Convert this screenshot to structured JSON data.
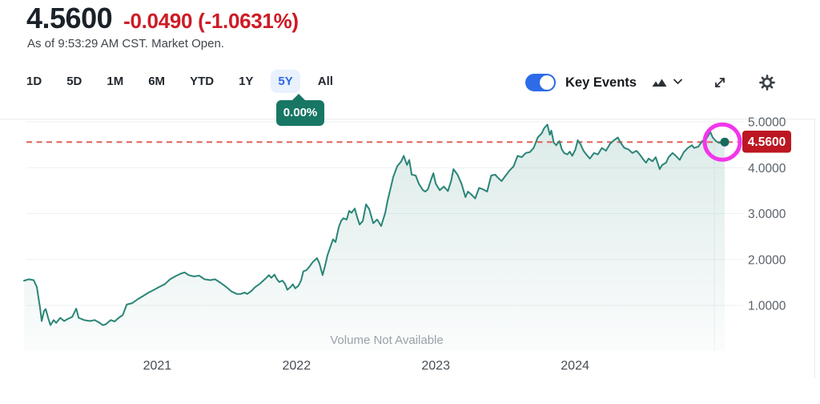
{
  "header": {
    "price": "4.5600",
    "change": "-0.0490",
    "change_pct": "(-1.0631%)",
    "as_of": "As of 9:53:29 AM CST. Market Open."
  },
  "toolbar": {
    "ranges": [
      "1D",
      "5D",
      "1M",
      "6M",
      "YTD",
      "1Y",
      "5Y",
      "All"
    ],
    "active_range": "5Y",
    "key_events_label": "Key Events",
    "key_events_on": true,
    "icons": [
      "area-chart-icon",
      "chevron-down-icon",
      "expand-icon",
      "gear-icon"
    ]
  },
  "tooltip": {
    "text": "0.00%"
  },
  "chart": {
    "price_label": "4.5600",
    "volume_note": "Volume Not Available"
  },
  "colors": {
    "line": "#2a8577",
    "dot": "#156b5c",
    "dashed": "#e06058",
    "price_label_bg": "#bc1722",
    "change_red": "#ce1b26",
    "accent_blue": "#2d6bea",
    "tooltip_green": "#177664",
    "highlight_ring": "#f136ea",
    "grid": "#eef0f2"
  },
  "chart_data": {
    "type": "area",
    "title": "",
    "xlabel": "",
    "ylabel": "",
    "x_ticks": [
      "2021",
      "2022",
      "2023",
      "2024"
    ],
    "y_ticks": [
      "5.0000",
      "4.0000",
      "3.0000",
      "2.0000",
      "1.0000"
    ],
    "ylim": [
      0,
      5.1
    ],
    "x_range": [
      2020.043,
      2025.075
    ],
    "grid": true,
    "legend": false,
    "current": 4.56,
    "points": [
      [
        2020.043,
        1.54
      ],
      [
        2020.078,
        1.57
      ],
      [
        2020.112,
        1.55
      ],
      [
        2020.135,
        1.4
      ],
      [
        2020.158,
        0.95
      ],
      [
        2020.17,
        0.66
      ],
      [
        2020.187,
        0.88
      ],
      [
        2020.199,
        0.92
      ],
      [
        2020.216,
        0.73
      ],
      [
        2020.233,
        0.57
      ],
      [
        2020.256,
        0.68
      ],
      [
        2020.274,
        0.62
      ],
      [
        2020.303,
        0.73
      ],
      [
        2020.331,
        0.66
      ],
      [
        2020.36,
        0.71
      ],
      [
        2020.389,
        0.75
      ],
      [
        2020.418,
        0.93
      ],
      [
        2020.435,
        0.73
      ],
      [
        2020.475,
        0.68
      ],
      [
        2020.516,
        0.66
      ],
      [
        2020.55,
        0.68
      ],
      [
        2020.591,
        0.61
      ],
      [
        2020.608,
        0.57
      ],
      [
        2020.631,
        0.59
      ],
      [
        2020.666,
        0.68
      ],
      [
        2020.694,
        0.65
      ],
      [
        2020.723,
        0.73
      ],
      [
        2020.752,
        0.79
      ],
      [
        2020.781,
        1.02
      ],
      [
        2020.821,
        1.05
      ],
      [
        2020.862,
        1.14
      ],
      [
        2020.896,
        1.2
      ],
      [
        2020.937,
        1.28
      ],
      [
        2020.977,
        1.34
      ],
      [
        2021.012,
        1.4
      ],
      [
        2021.052,
        1.46
      ],
      [
        2021.092,
        1.57
      ],
      [
        2021.127,
        1.63
      ],
      [
        2021.167,
        1.69
      ],
      [
        2021.196,
        1.72
      ],
      [
        2021.225,
        1.66
      ],
      [
        2021.265,
        1.63
      ],
      [
        2021.3,
        1.65
      ],
      [
        2021.34,
        1.57
      ],
      [
        2021.38,
        1.55
      ],
      [
        2021.415,
        1.57
      ],
      [
        2021.455,
        1.49
      ],
      [
        2021.496,
        1.4
      ],
      [
        2021.53,
        1.31
      ],
      [
        2021.571,
        1.25
      ],
      [
        2021.599,
        1.25
      ],
      [
        2021.628,
        1.28
      ],
      [
        2021.646,
        1.25
      ],
      [
        2021.674,
        1.31
      ],
      [
        2021.703,
        1.4
      ],
      [
        2021.732,
        1.46
      ],
      [
        2021.761,
        1.54
      ],
      [
        2021.784,
        1.6
      ],
      [
        2021.801,
        1.66
      ],
      [
        2021.819,
        1.6
      ],
      [
        2021.842,
        1.67
      ],
      [
        2021.859,
        1.57
      ],
      [
        2021.876,
        1.51
      ],
      [
        2021.899,
        1.54
      ],
      [
        2021.917,
        1.47
      ],
      [
        2021.934,
        1.34
      ],
      [
        2021.957,
        1.4
      ],
      [
        2021.974,
        1.46
      ],
      [
        2021.991,
        1.37
      ],
      [
        2022.014,
        1.43
      ],
      [
        2022.032,
        1.54
      ],
      [
        2022.049,
        1.74
      ],
      [
        2022.072,
        1.77
      ],
      [
        2022.089,
        1.83
      ],
      [
        2022.118,
        1.95
      ],
      [
        2022.147,
        2.03
      ],
      [
        2022.164,
        1.92
      ],
      [
        2022.187,
        1.66
      ],
      [
        2022.205,
        1.86
      ],
      [
        2022.222,
        2.09
      ],
      [
        2022.245,
        2.29
      ],
      [
        2022.262,
        2.44
      ],
      [
        2022.28,
        2.38
      ],
      [
        2022.303,
        2.7
      ],
      [
        2022.32,
        2.84
      ],
      [
        2022.337,
        2.9
      ],
      [
        2022.36,
        2.87
      ],
      [
        2022.378,
        3.06
      ],
      [
        2022.395,
        3.02
      ],
      [
        2022.418,
        3.11
      ],
      [
        2022.435,
        2.93
      ],
      [
        2022.453,
        2.76
      ],
      [
        2022.476,
        2.84
      ],
      [
        2022.499,
        3.2
      ],
      [
        2022.522,
        3.1
      ],
      [
        2022.551,
        2.79
      ],
      [
        2022.579,
        2.87
      ],
      [
        2022.608,
        2.73
      ],
      [
        2022.637,
        3.02
      ],
      [
        2022.654,
        3.28
      ],
      [
        2022.695,
        3.8
      ],
      [
        2022.723,
        4.03
      ],
      [
        2022.752,
        4.14
      ],
      [
        2022.77,
        4.26
      ],
      [
        2022.793,
        4.06
      ],
      [
        2022.81,
        4.17
      ],
      [
        2022.827,
        3.85
      ],
      [
        2022.856,
        3.83
      ],
      [
        2022.879,
        3.65
      ],
      [
        2022.908,
        3.51
      ],
      [
        2022.925,
        3.48
      ],
      [
        2022.943,
        3.53
      ],
      [
        2022.966,
        3.74
      ],
      [
        2022.983,
        3.88
      ],
      [
        2023.0,
        3.65
      ],
      [
        2023.029,
        3.51
      ],
      [
        2023.058,
        3.59
      ],
      [
        2023.087,
        3.49
      ],
      [
        2023.11,
        3.71
      ],
      [
        2023.127,
        3.97
      ],
      [
        2023.156,
        3.85
      ],
      [
        2023.185,
        3.65
      ],
      [
        2023.213,
        3.36
      ],
      [
        2023.231,
        3.48
      ],
      [
        2023.254,
        3.42
      ],
      [
        2023.283,
        3.33
      ],
      [
        2023.311,
        3.56
      ],
      [
        2023.34,
        3.53
      ],
      [
        2023.369,
        3.48
      ],
      [
        2023.398,
        3.83
      ],
      [
        2023.427,
        3.85
      ],
      [
        2023.444,
        3.79
      ],
      [
        2023.473,
        3.71
      ],
      [
        2023.502,
        3.83
      ],
      [
        2023.53,
        3.94
      ],
      [
        2023.559,
        4.03
      ],
      [
        2023.588,
        4.26
      ],
      [
        2023.617,
        4.23
      ],
      [
        2023.646,
        4.32
      ],
      [
        2023.675,
        4.34
      ],
      [
        2023.703,
        4.43
      ],
      [
        2023.732,
        4.66
      ],
      [
        2023.761,
        4.75
      ],
      [
        2023.778,
        4.86
      ],
      [
        2023.801,
        4.94
      ],
      [
        2023.819,
        4.72
      ],
      [
        2023.83,
        4.81
      ],
      [
        2023.847,
        4.55
      ],
      [
        2023.865,
        4.49
      ],
      [
        2023.888,
        4.58
      ],
      [
        2023.905,
        4.4
      ],
      [
        2023.922,
        4.32
      ],
      [
        2023.945,
        4.29
      ],
      [
        2023.963,
        4.35
      ],
      [
        2023.98,
        4.26
      ],
      [
        2024.003,
        4.4
      ],
      [
        2024.02,
        4.6
      ],
      [
        2024.038,
        4.52
      ],
      [
        2024.061,
        4.37
      ],
      [
        2024.089,
        4.26
      ],
      [
        2024.107,
        4.2
      ],
      [
        2024.136,
        4.32
      ],
      [
        2024.164,
        4.29
      ],
      [
        2024.193,
        4.43
      ],
      [
        2024.222,
        4.37
      ],
      [
        2024.251,
        4.52
      ],
      [
        2024.28,
        4.6
      ],
      [
        2024.308,
        4.66
      ],
      [
        2024.326,
        4.55
      ],
      [
        2024.355,
        4.43
      ],
      [
        2024.383,
        4.4
      ],
      [
        2024.412,
        4.32
      ],
      [
        2024.441,
        4.37
      ],
      [
        2024.464,
        4.29
      ],
      [
        2024.493,
        4.17
      ],
      [
        2024.51,
        4.11
      ],
      [
        2024.528,
        4.2
      ],
      [
        2024.556,
        4.14
      ],
      [
        2024.579,
        4.23
      ],
      [
        2024.608,
        3.97
      ],
      [
        2024.626,
        4.06
      ],
      [
        2024.654,
        4.11
      ],
      [
        2024.672,
        4.23
      ],
      [
        2024.7,
        4.32
      ],
      [
        2024.724,
        4.26
      ],
      [
        2024.752,
        4.17
      ],
      [
        2024.781,
        4.34
      ],
      [
        2024.81,
        4.43
      ],
      [
        2024.839,
        4.49
      ],
      [
        2024.856,
        4.43
      ],
      [
        2024.885,
        4.46
      ],
      [
        2024.914,
        4.58
      ],
      [
        2024.943,
        4.63
      ],
      [
        2024.972,
        4.78
      ],
      [
        2024.989,
        4.66
      ],
      [
        2025.012,
        4.58
      ],
      [
        2025.035,
        4.54
      ],
      [
        2025.075,
        4.56
      ]
    ]
  }
}
